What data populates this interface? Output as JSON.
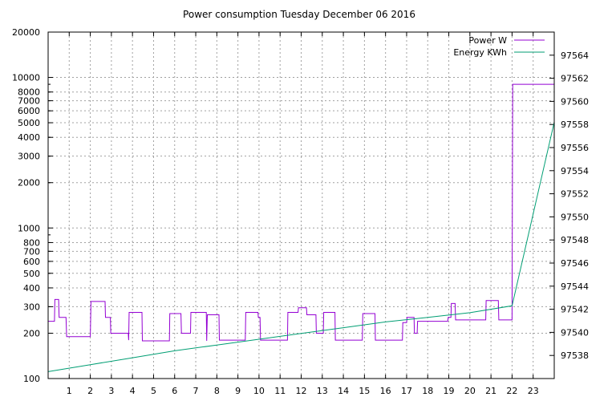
{
  "chart_data": {
    "type": "line",
    "title": "Power consumption Tuesday December 06 2016",
    "x_ticks": [
      "1",
      "2",
      "3",
      "4",
      "5",
      "6",
      "7",
      "8",
      "9",
      "10",
      "11",
      "12",
      "13",
      "14",
      "15",
      "16",
      "17",
      "18",
      "19",
      "20",
      "21",
      "22",
      "23"
    ],
    "xlim": [
      0,
      24
    ],
    "y_scale": "log",
    "ylim": [
      100,
      20000
    ],
    "y_ticks": [
      "100",
      "200",
      "300",
      "400",
      "500",
      "600",
      "700",
      "800",
      "1000",
      "2000",
      "3000",
      "4000",
      "5000",
      "6000",
      "7000",
      "8000",
      "10000",
      "20000"
    ],
    "y2lim": [
      97536,
      97566
    ],
    "y2_ticks": [
      "97538",
      "97540",
      "97542",
      "97544",
      "97546",
      "97548",
      "97550",
      "97552",
      "97554",
      "97556",
      "97558",
      "97560",
      "97562",
      "97564"
    ],
    "grid": true,
    "legend_position": "top-right",
    "series": [
      {
        "name": "Power W",
        "axis": "y",
        "color": "#9400d3",
        "points": [
          [
            0,
            240
          ],
          [
            0.3,
            240
          ],
          [
            0.32,
            335
          ],
          [
            0.5,
            335
          ],
          [
            0.52,
            255
          ],
          [
            0.85,
            255
          ],
          [
            0.88,
            190
          ],
          [
            2.0,
            190
          ],
          [
            2.03,
            325
          ],
          [
            2.7,
            325
          ],
          [
            2.72,
            255
          ],
          [
            2.95,
            255
          ],
          [
            2.97,
            200
          ],
          [
            3.8,
            200
          ],
          [
            3.82,
            180
          ],
          [
            3.84,
            275
          ],
          [
            4.45,
            275
          ],
          [
            4.47,
            178
          ],
          [
            5.75,
            178
          ],
          [
            5.77,
            270
          ],
          [
            6.3,
            270
          ],
          [
            6.32,
            200
          ],
          [
            6.75,
            200
          ],
          [
            6.77,
            275
          ],
          [
            7.5,
            275
          ],
          [
            7.52,
            178
          ],
          [
            7.55,
            265
          ],
          [
            8.1,
            265
          ],
          [
            8.12,
            180
          ],
          [
            9.35,
            180
          ],
          [
            9.37,
            275
          ],
          [
            9.95,
            275
          ],
          [
            9.97,
            255
          ],
          [
            10.05,
            255
          ],
          [
            10.07,
            180
          ],
          [
            11.35,
            180
          ],
          [
            11.37,
            275
          ],
          [
            11.85,
            275
          ],
          [
            11.87,
            295
          ],
          [
            12.25,
            295
          ],
          [
            12.27,
            265
          ],
          [
            12.7,
            265
          ],
          [
            12.72,
            200
          ],
          [
            13.05,
            200
          ],
          [
            13.07,
            275
          ],
          [
            13.6,
            275
          ],
          [
            13.62,
            180
          ],
          [
            14.9,
            180
          ],
          [
            14.92,
            270
          ],
          [
            15.5,
            270
          ],
          [
            15.52,
            180
          ],
          [
            16.8,
            180
          ],
          [
            16.82,
            235
          ],
          [
            17.0,
            235
          ],
          [
            17.02,
            255
          ],
          [
            17.35,
            255
          ],
          [
            17.37,
            200
          ],
          [
            17.5,
            200
          ],
          [
            17.52,
            240
          ],
          [
            18.95,
            240
          ],
          [
            18.97,
            255
          ],
          [
            19.1,
            255
          ],
          [
            19.12,
            315
          ],
          [
            19.3,
            315
          ],
          [
            19.32,
            245
          ],
          [
            20.75,
            245
          ],
          [
            20.77,
            330
          ],
          [
            21.35,
            330
          ],
          [
            21.37,
            245
          ],
          [
            22.0,
            245
          ],
          [
            22.03,
            9000
          ],
          [
            24,
            9000
          ]
        ]
      },
      {
        "name": "Energy KWh",
        "axis": "y2",
        "color": "#009e73",
        "points": [
          [
            0,
            97536.6
          ],
          [
            2.0,
            97537.2
          ],
          [
            4.0,
            97537.8
          ],
          [
            6.0,
            97538.4
          ],
          [
            8.0,
            97538.9
          ],
          [
            10.0,
            97539.4
          ],
          [
            12.0,
            97539.9
          ],
          [
            14.0,
            97540.4
          ],
          [
            16.0,
            97540.9
          ],
          [
            18.0,
            97541.3
          ],
          [
            20.0,
            97541.7
          ],
          [
            22.0,
            97542.3
          ],
          [
            24,
            97558.2
          ]
        ]
      }
    ]
  }
}
